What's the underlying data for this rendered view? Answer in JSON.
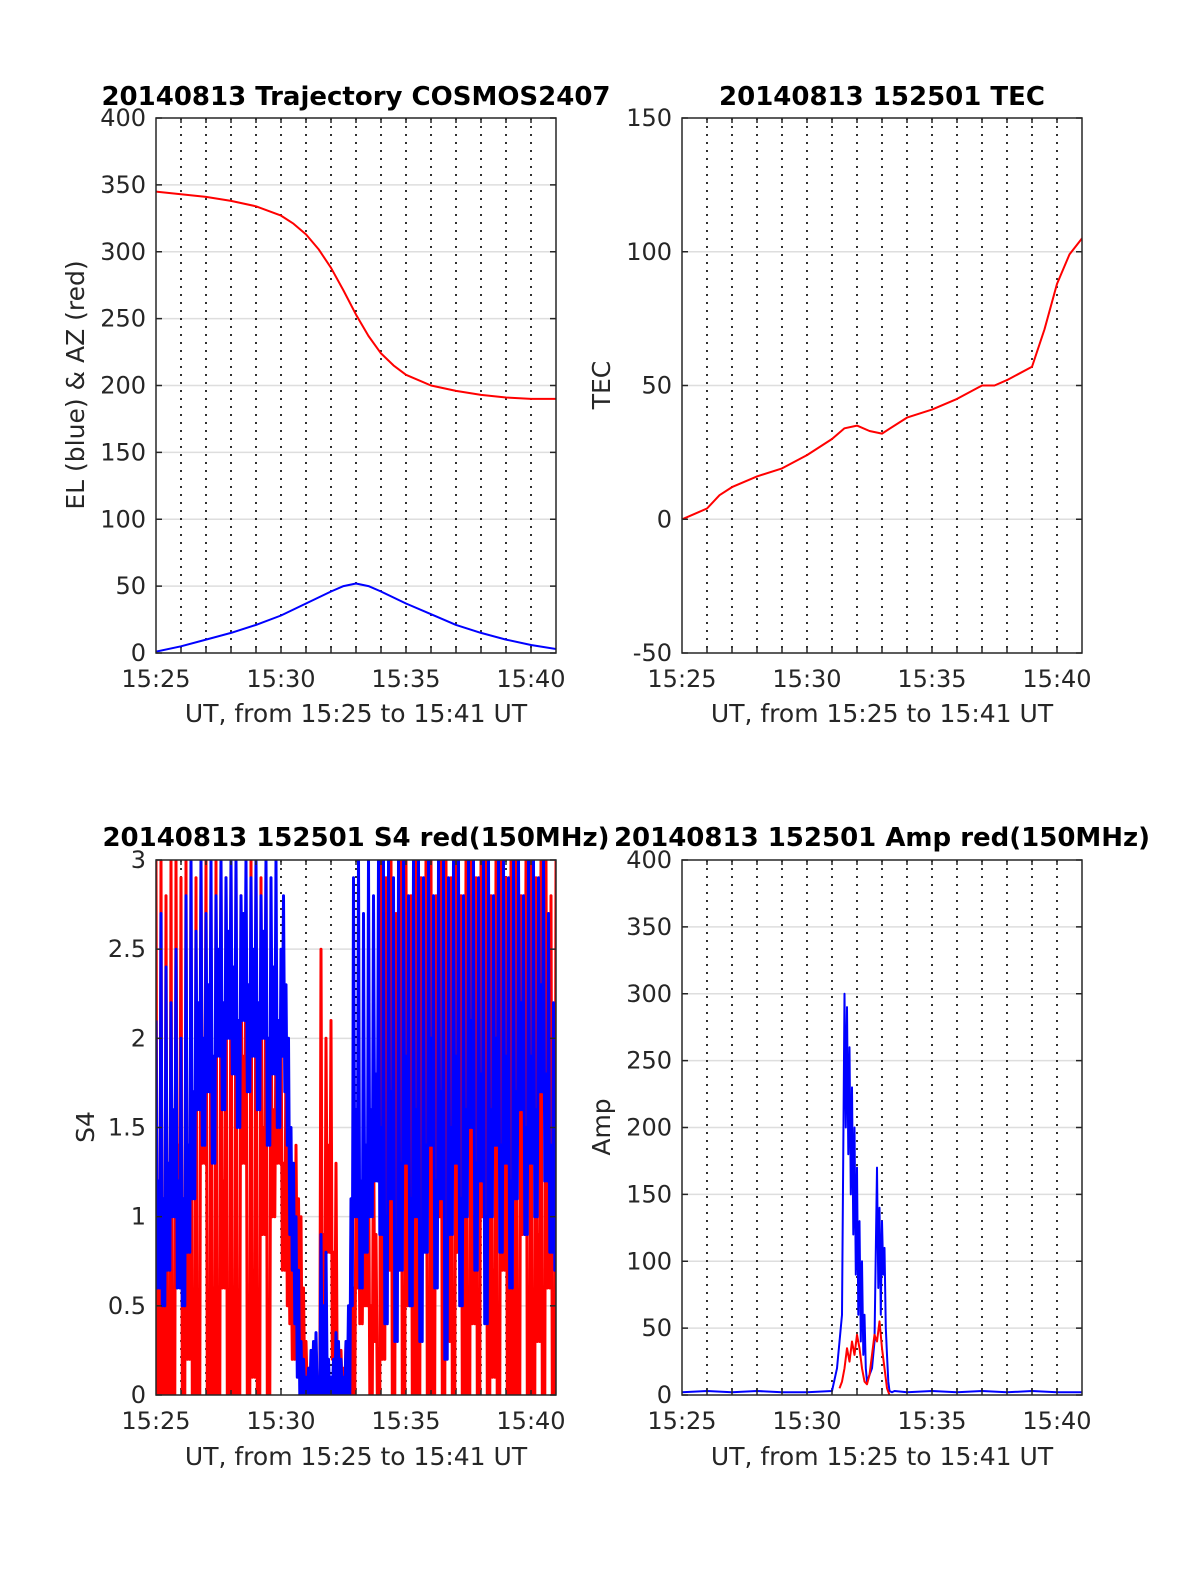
{
  "chart_data": [
    {
      "type": "line",
      "title": "20140813 Trajectory COSMOS2407",
      "xlabel": "UT, from 15:25 to 15:41 UT",
      "ylabel": "EL (blue) & AZ (red)",
      "xlim": [
        0,
        16
      ],
      "ylim": [
        0,
        400
      ],
      "yticks": [
        "0",
        "50",
        "100",
        "150",
        "200",
        "250",
        "300",
        "350",
        "400"
      ],
      "xticks": [
        "15:25",
        "15:30",
        "15:35",
        "15:40"
      ],
      "grid": true,
      "series": [
        {
          "color": "#0000ff",
          "style": "line",
          "x": [
            0,
            1,
            2,
            3,
            4,
            5,
            6,
            7,
            7.5,
            8,
            8.5,
            9,
            10,
            11,
            12,
            13,
            14,
            15,
            16
          ],
          "y": [
            1,
            5,
            10,
            15,
            21,
            28,
            37,
            46,
            50,
            52,
            50,
            46,
            37,
            29,
            21,
            15,
            10,
            6,
            3
          ]
        },
        {
          "color": "#ff0000",
          "style": "line",
          "x": [
            0,
            1,
            2,
            3,
            4,
            5,
            5.5,
            6,
            6.5,
            7,
            7.5,
            8,
            8.5,
            9,
            9.5,
            10,
            11,
            12,
            13,
            14,
            15,
            16
          ],
          "y": [
            345,
            343,
            341,
            338,
            334,
            327,
            321,
            313,
            302,
            288,
            271,
            253,
            237,
            224,
            215,
            208,
            200,
            196,
            193,
            191,
            190,
            190
          ]
        }
      ]
    },
    {
      "type": "line",
      "title": "20140813 152501 TEC",
      "xlabel": "UT, from 15:25 to 15:41 UT",
      "ylabel": "TEC",
      "xlim": [
        0,
        16
      ],
      "ylim": [
        -50,
        150
      ],
      "yticks": [
        "-50",
        "0",
        "50",
        "100",
        "150"
      ],
      "xticks": [
        "15:25",
        "15:30",
        "15:35",
        "15:40"
      ],
      "grid": true,
      "series": [
        {
          "color": "#ff0000",
          "style": "line",
          "x": [
            0,
            0.5,
            1,
            1.5,
            2,
            3,
            4,
            5,
            6,
            6.5,
            7,
            7.5,
            8,
            9,
            10,
            11,
            12,
            12.5,
            13,
            14,
            14.5,
            15,
            15.5,
            16
          ],
          "y": [
            0,
            2,
            4,
            9,
            12,
            16,
            19,
            24,
            30,
            34,
            35,
            33,
            32,
            38,
            41,
            45,
            50,
            50,
            52,
            57,
            71,
            88,
            99,
            105
          ]
        }
      ]
    },
    {
      "type": "line",
      "title": "20140813 152501 S4 red(150MHz)",
      "xlabel": "UT, from 15:25 to 15:41 UT",
      "ylabel": "S4",
      "xlim": [
        0,
        16
      ],
      "ylim": [
        0,
        3
      ],
      "yticks": [
        "0",
        "0.5",
        "1",
        "1.5",
        "2",
        "2.5",
        "3"
      ],
      "xticks": [
        "15:25",
        "15:30",
        "15:35",
        "15:40"
      ],
      "grid": true,
      "series": [
        {
          "color": "#ff0000",
          "style": "spikes",
          "x": [
            0,
            0.1,
            0.2,
            0.3,
            0.4,
            0.5,
            0.6,
            0.7,
            0.8,
            0.9,
            1.0,
            1.1,
            1.2,
            1.3,
            1.4,
            1.5,
            1.6,
            1.7,
            1.8,
            1.9,
            2.0,
            2.1,
            2.2,
            2.3,
            2.4,
            2.5,
            2.6,
            2.7,
            2.8,
            2.9,
            3.0,
            3.1,
            3.2,
            3.3,
            3.4,
            3.5,
            3.6,
            3.7,
            3.8,
            3.9,
            4.0,
            4.1,
            4.2,
            4.3,
            4.4,
            4.5,
            4.6,
            4.7,
            4.8,
            4.9,
            5.0,
            5.1,
            5.2,
            5.3,
            5.4,
            5.5,
            5.6,
            5.7,
            5.8,
            5.9,
            6.0,
            6.1,
            6.2,
            6.3,
            6.4,
            6.5,
            6.6,
            6.7,
            6.8,
            6.9,
            7.0,
            7.1,
            7.2,
            7.3,
            7.4,
            7.5,
            7.6,
            7.7,
            7.8,
            7.9,
            8.0,
            8.1,
            8.2,
            8.3,
            8.4,
            8.5,
            8.6,
            8.7,
            8.8,
            8.9,
            9.0,
            9.1,
            9.2,
            9.3,
            9.4,
            9.5,
            9.6,
            9.7,
            9.8,
            9.9,
            10.0,
            10.1,
            10.2,
            10.3,
            10.4,
            10.5,
            10.6,
            10.7,
            10.8,
            10.9,
            11.0,
            11.1,
            11.2,
            11.3,
            11.4,
            11.5,
            11.6,
            11.7,
            11.8,
            11.9,
            12.0,
            12.1,
            12.2,
            12.3,
            12.4,
            12.5,
            12.6,
            12.7,
            12.8,
            12.9,
            13.0,
            13.1,
            13.2,
            13.3,
            13.4,
            13.5,
            13.6,
            13.7,
            13.8,
            13.9,
            14.0,
            14.1,
            14.2,
            14.3,
            14.4,
            14.5,
            14.6,
            14.7,
            14.8,
            14.9,
            15.0,
            15.1,
            15.2,
            15.3,
            15.4,
            15.5,
            15.6,
            15.7,
            15.8,
            15.9,
            16.0
          ],
          "y": [
            3,
            0.1,
            3,
            0.5,
            2.8,
            0,
            3,
            0.3,
            3,
            1.4,
            2.9,
            0,
            3,
            0.8,
            3,
            0.2,
            2.9,
            0,
            3,
            1.9,
            3,
            0,
            2.8,
            0.6,
            3,
            0,
            3,
            1.2,
            2.9,
            0,
            3,
            0.4,
            3,
            0,
            2.8,
            1.9,
            2.6,
            0,
            3,
            0.7,
            3,
            0,
            2.9,
            1.5,
            3,
            0.2,
            2.4,
            1.6,
            2.1,
            1.9,
            2.2,
            1.3,
            2.0,
            1.1,
            1.0,
            0.8,
            1.4,
            1.1,
            1.0,
            0.6,
            0.3,
            0.15,
            0.12,
            0.2,
            0.25,
            0.1,
            2.5,
            0.9,
            2.0,
            1.4,
            2.1,
            0.8,
            1.3,
            0.2,
            0.25,
            0.15,
            0.3,
            0.1,
            0.9,
            0.6,
            1.2,
            1.3,
            1.0,
            1.4,
            1.1,
            1.5,
            0.5,
            1.6,
            0.9,
            0.2,
            3,
            0.8,
            2.9,
            1.3,
            3,
            0.5,
            2.7,
            1.8,
            3,
            0.1,
            3,
            1.1,
            2.8,
            0,
            3,
            0.6,
            2.9,
            1.5,
            3,
            0,
            3,
            0.3,
            2.8,
            1.6,
            3,
            0.1,
            3,
            0.9,
            2.9,
            0,
            3,
            1.4,
            2.8,
            0.4,
            3,
            0,
            3,
            1.0,
            2.9,
            0.2,
            3,
            1.6,
            3,
            0,
            2.8,
            0.7,
            3,
            0,
            3,
            1.3,
            2.9,
            0.1,
            3,
            0.6,
            3,
            0,
            2.8,
            1.5,
            3,
            0.3,
            3,
            0,
            2.9,
            0.9,
            3,
            0,
            3,
            1.2,
            2.8,
            0.2,
            3
          ]
        },
        {
          "color": "#0000ff",
          "style": "spikes",
          "x": [
            0,
            0.1,
            0.2,
            0.3,
            0.4,
            0.5,
            0.6,
            0.7,
            0.8,
            0.9,
            1.0,
            1.1,
            1.2,
            1.3,
            1.4,
            1.5,
            1.6,
            1.7,
            1.8,
            1.9,
            2.0,
            2.1,
            2.2,
            2.3,
            2.4,
            2.5,
            2.6,
            2.7,
            2.8,
            2.9,
            3.0,
            3.1,
            3.2,
            3.3,
            3.4,
            3.5,
            3.6,
            3.7,
            3.8,
            3.9,
            4.0,
            4.1,
            4.2,
            4.3,
            4.4,
            4.5,
            4.6,
            4.7,
            4.8,
            4.9,
            5.0,
            5.1,
            5.2,
            5.3,
            5.4,
            5.5,
            5.6,
            5.7,
            5.8,
            5.9,
            6.0,
            6.1,
            6.2,
            6.3,
            6.4,
            6.5,
            6.6,
            6.7,
            6.8,
            6.9,
            7.0,
            7.1,
            7.2,
            7.3,
            7.4,
            7.5,
            7.6,
            7.7,
            7.8,
            7.9,
            8.0,
            8.1,
            8.2,
            8.3,
            8.4,
            8.5,
            8.6,
            8.7,
            8.8,
            8.9,
            9.0,
            9.1,
            9.2,
            9.3,
            9.4,
            9.5,
            9.6,
            9.7,
            9.8,
            9.9,
            10.0,
            10.1,
            10.2,
            10.3,
            10.4,
            10.5,
            10.6,
            10.7,
            10.8,
            10.9,
            11.0,
            11.1,
            11.2,
            11.3,
            11.4,
            11.5,
            11.6,
            11.7,
            11.8,
            11.9,
            12.0,
            12.1,
            12.2,
            12.3,
            12.4,
            12.5,
            12.6,
            12.7,
            12.8,
            12.9,
            13.0,
            13.1,
            13.2,
            13.3,
            13.4,
            13.5,
            13.6,
            13.7,
            13.8,
            13.9,
            14.0,
            14.1,
            14.2,
            14.3,
            14.4,
            14.5,
            14.6,
            14.7,
            14.8,
            14.9,
            15.0,
            15.1,
            15.2,
            15.3,
            15.4,
            15.5,
            15.6,
            15.7,
            15.8,
            15.9,
            16.0
          ],
          "y": [
            2.1,
            1.2,
            2.7,
            1.1,
            2.4,
            1.3,
            2.2,
            1.6,
            2.5,
            1.2,
            2.0,
            1.1,
            2.8,
            1.4,
            3,
            1.7,
            2.6,
            2.2,
            3,
            2.0,
            2.7,
            2.3,
            3,
            1.9,
            2.8,
            2.5,
            3,
            2.2,
            2.9,
            2.6,
            3,
            2.4,
            3,
            2.1,
            2.8,
            2.7,
            3,
            2.3,
            2.9,
            2.5,
            3,
            2.2,
            2.8,
            2.6,
            3,
            2.0,
            2.9,
            2.4,
            3,
            2.1,
            2.5,
            2.8,
            2.3,
            2.0,
            1.5,
            1.3,
            1.0,
            0.7,
            0.3,
            0.2,
            0.1,
            0.15,
            0.25,
            0.3,
            0.35,
            0.1,
            0.9,
            0.5,
            0.8,
            0.2,
            0.1,
            0.2,
            0.35,
            0.3,
            0.2,
            0.1,
            0.3,
            0.5,
            1.1,
            2.9,
            1.6,
            3,
            1.2,
            2.7,
            1.4,
            3,
            1.6,
            2.8,
            1.8,
            3,
            1.5,
            3,
            1.0,
            3,
            1.7,
            2.9,
            0.9,
            3,
            1.3,
            3,
            1.9,
            2.8,
            1.1,
            3,
            1.6,
            3,
            0.9,
            2.9,
            1.4,
            3,
            2.0,
            2.8,
            1.2,
            3,
            1.7,
            3,
            0.8,
            2.9,
            1.5,
            3,
            1.9,
            3,
            1.1,
            2.8,
            1.6,
            3,
            2.1,
            3,
            1.3,
            2.9,
            1.8,
            3,
            1.0,
            3,
            1.6,
            2.8,
            2.0,
            3,
            1.4,
            3,
            1.9,
            2.9,
            1.2,
            3,
            1.7,
            3,
            2.2,
            2.8,
            1.5,
            3,
            1.9,
            3,
            1.6,
            2.9,
            2.3,
            3,
            1.8,
            2.7,
            1.4,
            2.2,
            1.3
          ]
        }
      ]
    },
    {
      "type": "line",
      "title": "20140813 152501 Amp red(150MHz)",
      "xlabel": "UT, from 15:25 to 15:41 UT",
      "ylabel": "Amp",
      "xlim": [
        0,
        16
      ],
      "ylim": [
        0,
        400
      ],
      "yticks": [
        "0",
        "50",
        "100",
        "150",
        "200",
        "250",
        "300",
        "350",
        "400"
      ],
      "xticks": [
        "15:25",
        "15:30",
        "15:35",
        "15:40"
      ],
      "grid": true,
      "series": [
        {
          "color": "#0000ff",
          "style": "line",
          "x": [
            0,
            1,
            2,
            3,
            4,
            5,
            6,
            6.2,
            6.4,
            6.5,
            6.55,
            6.6,
            6.65,
            6.7,
            6.75,
            6.8,
            6.85,
            6.9,
            6.95,
            7.0,
            7.05,
            7.1,
            7.15,
            7.2,
            7.25,
            7.3,
            7.35,
            7.4,
            7.5,
            7.6,
            7.7,
            7.8,
            7.85,
            7.9,
            7.95,
            8.0,
            8.05,
            8.1,
            8.15,
            8.2,
            8.25,
            8.3,
            8.4,
            8.5,
            9,
            10,
            11,
            12,
            13,
            14,
            15,
            16
          ],
          "y": [
            2,
            3,
            2,
            3,
            2,
            2,
            3,
            20,
            60,
            300,
            200,
            290,
            180,
            260,
            150,
            230,
            120,
            200,
            90,
            170,
            60,
            130,
            40,
            100,
            30,
            60,
            20,
            10,
            15,
            20,
            40,
            170,
            80,
            140,
            60,
            130,
            90,
            110,
            50,
            30,
            10,
            3,
            2,
            3,
            2,
            3,
            2,
            3,
            2,
            3,
            2,
            2
          ]
        },
        {
          "color": "#ff0000",
          "style": "line",
          "x": [
            6.3,
            6.4,
            6.5,
            6.6,
            6.7,
            6.8,
            6.9,
            7.0,
            7.1,
            7.2,
            7.3,
            7.4,
            7.5,
            7.6,
            7.7,
            7.8,
            7.9,
            8.0,
            8.1,
            8.2,
            8.3,
            8.4,
            8.5
          ],
          "y": [
            5,
            10,
            20,
            35,
            25,
            40,
            30,
            45,
            35,
            20,
            10,
            8,
            15,
            30,
            45,
            40,
            55,
            35,
            20,
            5,
            0,
            -5,
            0
          ]
        }
      ]
    }
  ]
}
